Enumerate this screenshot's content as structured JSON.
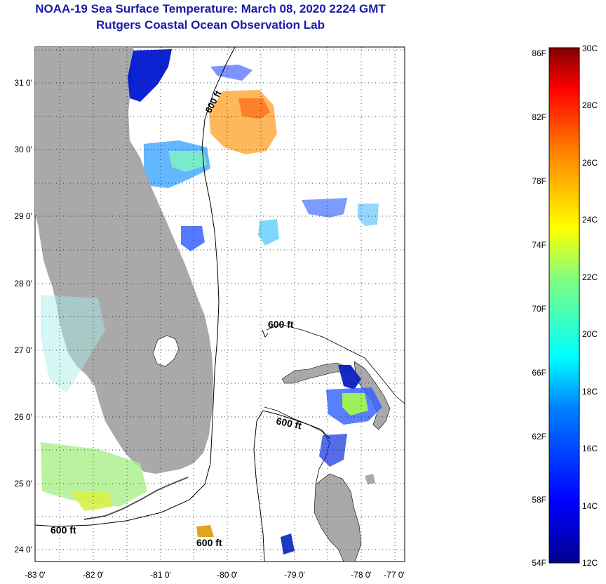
{
  "header": {
    "title": "NOAA-19 Sea Surface Temperature:  March 08, 2020 2224 GMT",
    "subtitle": "Rutgers Coastal Ocean Observation Lab"
  },
  "map": {
    "lon_labels": [
      "-83 0'",
      "-82 0'",
      "-81 0'",
      "-80 0'",
      "-79 0'",
      "-78 0'",
      "-77 0'"
    ],
    "lat_labels": [
      "24 0'",
      "25 0'",
      "26 0'",
      "27 0'",
      "28 0'",
      "29 0'",
      "30 0'",
      "31 0'"
    ],
    "contour_labels": [
      "600 ft",
      "600 ft",
      "600 ft",
      "600 ft",
      "600 ft"
    ],
    "land_color": "#a9a9a9",
    "ocean_color": "#ffffff"
  },
  "colorbar": {
    "fahrenheit_labels": [
      "86F",
      "82F",
      "78F",
      "74F",
      "70F",
      "66F",
      "62F",
      "58F",
      "54F"
    ],
    "celsius_labels": [
      "30C",
      "28C",
      "26C",
      "24C",
      "22C",
      "20C",
      "18C",
      "16C",
      "14C",
      "12C"
    ],
    "colors": [
      "#00008f",
      "#0000ff",
      "#0080ff",
      "#00ffff",
      "#80ff80",
      "#ffff00",
      "#ff8000",
      "#ff0000",
      "#800000"
    ]
  }
}
